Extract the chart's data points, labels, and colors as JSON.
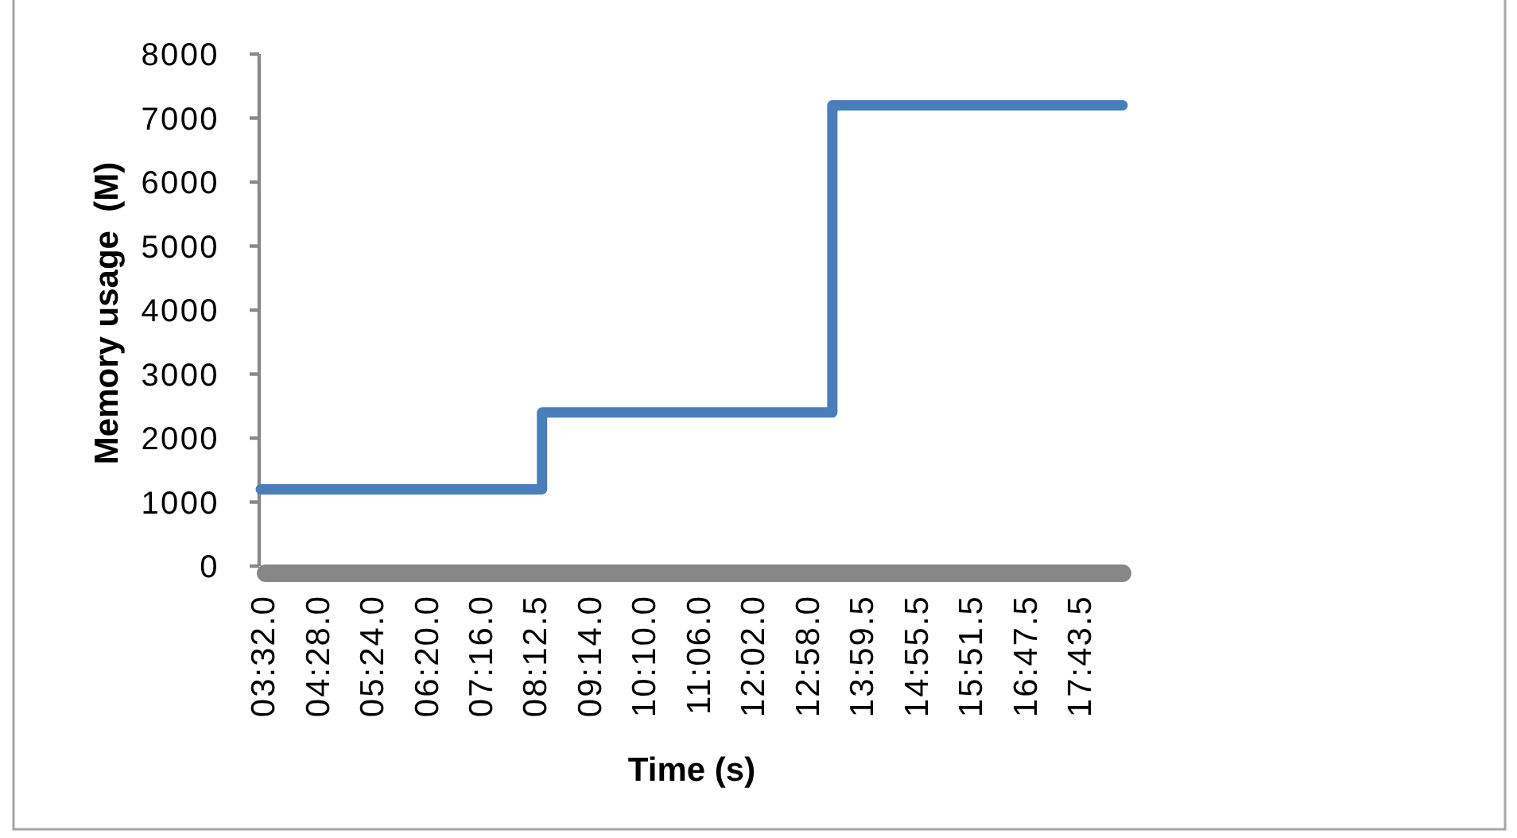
{
  "chart_data": {
    "type": "step",
    "xlabel": "Time (s)",
    "ylabel": "Memory usage  (M)",
    "categories": [
      "03:32.0",
      null,
      null,
      null,
      null,
      null,
      "04:28.0",
      null,
      null,
      null,
      null,
      null,
      "05:24.0",
      null,
      null,
      null,
      null,
      null,
      "06:20.0",
      null,
      null,
      null,
      null,
      null,
      "07:16.0",
      null,
      null,
      null,
      null,
      null,
      "08:12.5",
      null,
      null,
      null,
      null,
      null,
      "09:14.0",
      null,
      null,
      null,
      null,
      null,
      "10:10.0",
      null,
      null,
      null,
      null,
      null,
      "11:06.0",
      null,
      null,
      null,
      null,
      null,
      "12:02.0",
      null,
      null,
      null,
      null,
      null,
      "12:58.0",
      null,
      null,
      null,
      null,
      null,
      "13:59.5",
      null,
      null,
      null,
      null,
      null,
      "14:55.5",
      null,
      null,
      null,
      null,
      null,
      "15:51.5",
      null,
      null,
      null,
      null,
      null,
      "16:47.5",
      null,
      null,
      null,
      null,
      null,
      "17:43.5",
      null,
      null,
      null,
      null,
      null
    ],
    "series": [
      {
        "color": "#4a7ebb",
        "values": [
          1200,
          1200,
          1200,
          1200,
          1200,
          1200,
          1200,
          1200,
          1200,
          1200,
          1200,
          1200,
          1200,
          1200,
          1200,
          1200,
          1200,
          1200,
          1200,
          1200,
          1200,
          1200,
          1200,
          1200,
          1200,
          1200,
          1200,
          1200,
          1200,
          1200,
          1200,
          2400,
          2400,
          2400,
          2400,
          2400,
          2400,
          2400,
          2400,
          2400,
          2400,
          2400,
          2400,
          2400,
          2400,
          2400,
          2400,
          2400,
          2400,
          2400,
          2400,
          2400,
          2400,
          2400,
          2400,
          2400,
          2400,
          2400,
          2400,
          2400,
          2400,
          2400,
          2400,
          7200,
          7200,
          7200,
          7200,
          7200,
          7200,
          7200,
          7200,
          7200,
          7200,
          7200,
          7200,
          7200,
          7200,
          7200,
          7200,
          7200,
          7200,
          7200,
          7200,
          7200,
          7200,
          7200,
          7200,
          7200,
          7200,
          7200,
          7200,
          7200,
          7200,
          7200,
          7200,
          7200
        ]
      }
    ],
    "ylim": [
      0,
      8000
    ],
    "yticks": [
      0,
      1000,
      2000,
      3000,
      4000,
      5000,
      6000,
      7000,
      8000
    ]
  }
}
